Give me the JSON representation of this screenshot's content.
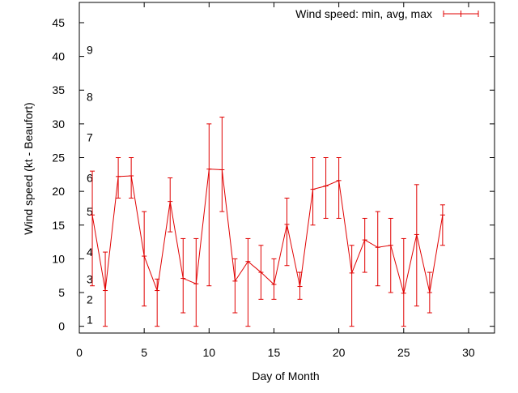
{
  "chart_data": {
    "type": "line",
    "title": "",
    "xlabel": "Day of Month",
    "ylabel": "Wind speed (kt - Beaufort)",
    "xlim": [
      0,
      32
    ],
    "ylim": [
      -1,
      48
    ],
    "xticks": [
      0,
      5,
      10,
      15,
      20,
      25,
      30
    ],
    "yticks": [
      0,
      5,
      10,
      15,
      20,
      25,
      30,
      35,
      40,
      45
    ],
    "grid": false,
    "legend": "top-right",
    "beaufort_labels": [
      {
        "label": "1",
        "y": 1
      },
      {
        "label": "2",
        "y": 4
      },
      {
        "label": "3",
        "y": 7
      },
      {
        "label": "4",
        "y": 11
      },
      {
        "label": "5",
        "y": 17
      },
      {
        "label": "6",
        "y": 22
      },
      {
        "label": "7",
        "y": 28
      },
      {
        "label": "8",
        "y": 34
      },
      {
        "label": "9",
        "y": 41
      }
    ],
    "series": [
      {
        "name": "Wind speed: min, avg, max",
        "color": "#e00000",
        "x": [
          1,
          2,
          3,
          4,
          5,
          6,
          7,
          8,
          9,
          10,
          11,
          12,
          13,
          14,
          15,
          16,
          17,
          18,
          19,
          20,
          21,
          22,
          23,
          24,
          25,
          26,
          27,
          28
        ],
        "avg": [
          16.5,
          5.3,
          22.2,
          22.3,
          10.4,
          5.3,
          18.5,
          7.1,
          6.3,
          23.3,
          23.2,
          6.7,
          9.6,
          8.0,
          6.2,
          15.1,
          5.9,
          20.3,
          20.8,
          21.6,
          7.9,
          12.8,
          11.7,
          12.0,
          4.9,
          13.6,
          5.0,
          16.5
        ],
        "min": [
          6,
          0,
          19,
          19,
          3,
          0,
          14,
          2,
          0,
          6,
          17,
          2,
          0,
          4,
          4,
          9,
          4,
          15,
          16,
          16,
          0,
          8,
          6,
          5,
          0,
          3,
          2,
          12
        ],
        "max": [
          23,
          11,
          25,
          25,
          17,
          7,
          22,
          13,
          13,
          30,
          31,
          10,
          13,
          12,
          10,
          19,
          8,
          25,
          25,
          25,
          12,
          16,
          17,
          16,
          13,
          21,
          8,
          18
        ]
      }
    ]
  }
}
